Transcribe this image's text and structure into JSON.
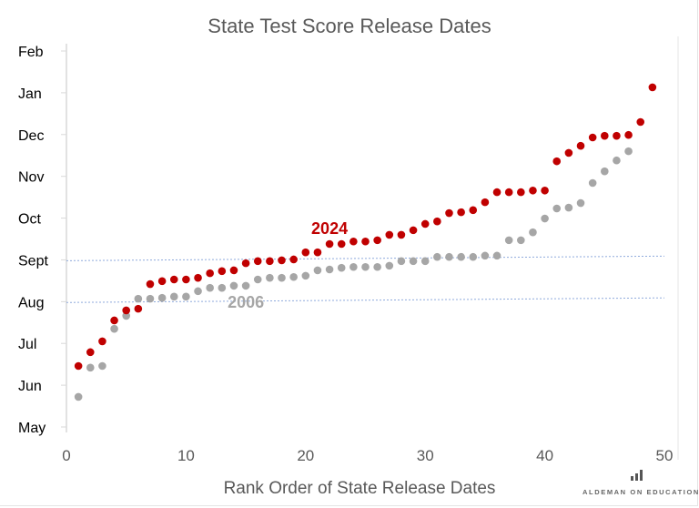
{
  "chart_data": {
    "type": "scatter",
    "title": "State Test Score Release Dates",
    "xlabel": "Rank Order of State Release Dates",
    "ylabel": "",
    "xlim": [
      0,
      50
    ],
    "xticks": [
      0,
      10,
      20,
      30,
      40,
      50
    ],
    "ylim": [
      5,
      14
    ],
    "yticks": [
      5,
      6,
      7,
      8,
      9,
      10,
      11,
      12,
      13,
      14
    ],
    "ytick_labels": [
      "May",
      "Jun",
      "Jul",
      "Aug",
      "Sept",
      "Oct",
      "Nov",
      "Dec",
      "Jan",
      "Feb"
    ],
    "y_units": "month (fractional; 13 = Jan, 14 = Feb of following year)",
    "grid": false,
    "series": [
      {
        "name": "2024",
        "color": "#c00000",
        "x": [
          1,
          2,
          3,
          4,
          5,
          6,
          7,
          8,
          9,
          10,
          11,
          12,
          13,
          14,
          15,
          16,
          17,
          18,
          19,
          20,
          21,
          22,
          23,
          24,
          25,
          26,
          27,
          28,
          29,
          30,
          31,
          32,
          33,
          34,
          35,
          36,
          37,
          38,
          39,
          40,
          41,
          42,
          43,
          44,
          45,
          46,
          47,
          48,
          49
        ],
        "y": [
          6.46,
          6.79,
          7.05,
          7.55,
          7.79,
          7.83,
          8.42,
          8.49,
          8.53,
          8.53,
          8.57,
          8.68,
          8.73,
          8.75,
          8.92,
          8.97,
          8.97,
          8.99,
          9.01,
          9.18,
          9.18,
          9.38,
          9.38,
          9.44,
          9.44,
          9.47,
          9.6,
          9.6,
          9.71,
          9.86,
          9.92,
          10.12,
          10.14,
          10.19,
          10.38,
          10.62,
          10.62,
          10.62,
          10.66,
          10.66,
          11.36,
          11.56,
          11.73,
          11.93,
          11.97,
          11.97,
          11.99,
          12.3,
          13.13
        ]
      },
      {
        "name": "2006",
        "color": "#a6a6a6",
        "x": [
          1,
          2,
          3,
          4,
          5,
          6,
          7,
          8,
          9,
          10,
          11,
          12,
          13,
          14,
          15,
          16,
          17,
          18,
          19,
          20,
          21,
          22,
          23,
          24,
          25,
          26,
          27,
          28,
          29,
          30,
          31,
          32,
          33,
          34,
          35,
          36,
          37,
          38,
          39,
          40,
          41,
          42,
          43,
          44,
          45,
          46,
          47
        ],
        "y": [
          5.72,
          6.42,
          6.46,
          7.35,
          7.66,
          8.07,
          8.07,
          8.09,
          8.12,
          8.12,
          8.25,
          8.33,
          8.33,
          8.38,
          8.38,
          8.53,
          8.57,
          8.57,
          8.59,
          8.62,
          8.75,
          8.77,
          8.81,
          8.83,
          8.83,
          8.83,
          8.86,
          8.97,
          8.97,
          8.97,
          9.07,
          9.07,
          9.07,
          9.07,
          9.1,
          9.1,
          9.47,
          9.47,
          9.66,
          9.99,
          10.23,
          10.25,
          10.36,
          10.84,
          11.12,
          11.38,
          11.6
        ]
      }
    ],
    "annotations": [
      {
        "text": "2024",
        "x": 22,
        "y": 9.62,
        "color": "#c00000"
      },
      {
        "text": "2006",
        "x": 15,
        "y": 7.85,
        "color": "#a6a6a6"
      }
    ],
    "reference_lines": [
      {
        "style": "dotted",
        "color": "#8faadc",
        "from": [
          0,
          8.98
        ],
        "to": [
          50,
          9.09
        ]
      },
      {
        "style": "dotted",
        "color": "#8faadc",
        "from": [
          0,
          7.98
        ],
        "to": [
          50,
          8.09
        ]
      }
    ]
  },
  "logo": {
    "text": "ALDEMAN ON EDUCATION"
  }
}
